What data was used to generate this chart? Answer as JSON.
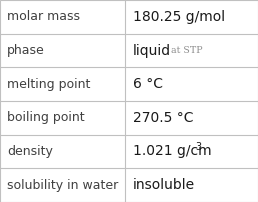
{
  "rows": [
    {
      "label": "molar mass",
      "value": "180.25 g/mol",
      "type": "normal"
    },
    {
      "label": "phase",
      "value": "liquid",
      "type": "phase",
      "suffix": "at STP"
    },
    {
      "label": "melting point",
      "value": "6 °C",
      "type": "normal"
    },
    {
      "label": "boiling point",
      "value": "270.5 °C",
      "type": "normal"
    },
    {
      "label": "density",
      "value": "1.021 g/cm",
      "type": "density"
    },
    {
      "label": "solubility in water",
      "value": "insoluble",
      "type": "normal"
    }
  ],
  "background_color": "#ffffff",
  "border_color": "#c0c0c0",
  "label_color": "#404040",
  "value_color": "#1a1a1a",
  "small_color": "#909090",
  "col_split": 0.485,
  "font_size_label": 9.0,
  "font_size_value": 10.0,
  "font_size_small": 6.8,
  "font_size_super": 7.0
}
